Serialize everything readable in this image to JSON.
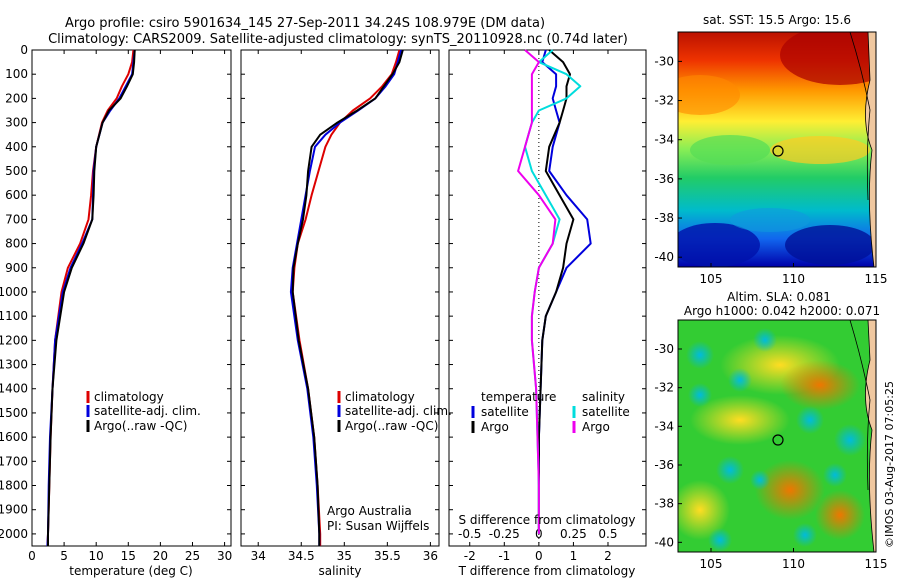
{
  "header": {
    "line1": "Argo profile: csiro 5901634_145 27-Sep-2011 34.24S 108.979E (DM data)",
    "line2": "Climatology: CARS2009. Satellite-adjusted climatology: synTS_20110928.nc (0.74d later)"
  },
  "colors": {
    "climatology": "#dd0000",
    "satellite": "#0000dd",
    "argo": "#000000",
    "sat_salinity": "#00dddd",
    "argo_salinity": "#ee00ee"
  },
  "legend_labels": {
    "climatology": "climatology",
    "satellite_adj": "satellite-adj. clim.",
    "argo": "Argo(..raw -QC)"
  },
  "diff_legend": {
    "temperature": "temperature",
    "salinity": "salinity",
    "satellite": "satellite",
    "argo": "Argo"
  },
  "credit": {
    "line1": "Argo Australia",
    "line2": "PI: Susan Wijffels"
  },
  "side_text": "©IMOS 03-Aug-2017 07:05:25",
  "maps": [
    {
      "title": "sat. SST: 15.5 Argo: 15.6",
      "xticks": [
        "105",
        "110",
        "115"
      ],
      "yticks": [
        "-30",
        "-32",
        "-34",
        "-36",
        "-38",
        "-40"
      ]
    },
    {
      "title": "Altim. SLA: 0.081",
      "title2": "Argo h1000: 0.042 h2000: 0.071",
      "xticks": [
        "105",
        "110",
        "115"
      ],
      "yticks": [
        "-30",
        "-32",
        "-34",
        "-36",
        "-38",
        "-40"
      ]
    }
  ],
  "chart_data": [
    {
      "type": "line",
      "xlabel": "temperature (deg C)",
      "xlim": [
        0,
        31
      ],
      "xticks": [
        "0",
        "5",
        "10",
        "15",
        "20",
        "25",
        "30"
      ],
      "ylim": [
        0,
        2050
      ],
      "yticks": [
        "0",
        "100",
        "200",
        "300",
        "400",
        "500",
        "600",
        "700",
        "800",
        "900",
        "1000",
        "1100",
        "1200",
        "1300",
        "1400",
        "1500",
        "1600",
        "1700",
        "1800",
        "1900",
        "2000"
      ],
      "depth": [
        0,
        50,
        100,
        150,
        200,
        250,
        300,
        400,
        500,
        600,
        700,
        800,
        900,
        1000,
        1200,
        1400,
        1600,
        1800,
        2000,
        2050
      ],
      "series": [
        {
          "name": "climatology",
          "values": [
            15.8,
            15.6,
            15.0,
            14.0,
            13.2,
            11.8,
            10.9,
            10.0,
            9.5,
            9.2,
            8.8,
            7.5,
            5.6,
            4.6,
            3.6,
            3.2,
            2.9,
            2.7,
            2.5,
            2.4
          ]
        },
        {
          "name": "satellite-adj. clim.",
          "values": [
            16.0,
            15.8,
            15.6,
            14.6,
            13.6,
            12.2,
            11.0,
            10.0,
            9.6,
            9.5,
            9.4,
            7.8,
            6.0,
            4.8,
            3.6,
            3.2,
            2.8,
            2.6,
            2.5,
            2.4
          ]
        },
        {
          "name": "Argo(..raw -QC)",
          "values": [
            16.0,
            15.9,
            15.7,
            14.8,
            13.8,
            12.0,
            11.0,
            10.0,
            9.7,
            9.6,
            9.4,
            8.0,
            6.2,
            5.0,
            3.8,
            3.2,
            2.9,
            2.7,
            2.5,
            2.5
          ]
        }
      ]
    },
    {
      "type": "line",
      "xlabel": "salinity",
      "xlim": [
        33.8,
        36.1
      ],
      "xticks": [
        "34",
        "34.5",
        "35",
        "35.5",
        "36"
      ],
      "ylim": [
        0,
        2050
      ],
      "depth": [
        0,
        50,
        100,
        150,
        200,
        250,
        300,
        350,
        400,
        500,
        600,
        700,
        800,
        900,
        1000,
        1200,
        1400,
        1600,
        1800,
        2000,
        2050
      ],
      "series": [
        {
          "name": "climatology",
          "values": [
            35.64,
            35.6,
            35.55,
            35.44,
            35.3,
            35.1,
            34.95,
            34.85,
            34.78,
            34.7,
            34.62,
            34.55,
            34.46,
            34.42,
            34.4,
            34.48,
            34.58,
            34.65,
            34.69,
            34.72,
            34.72
          ]
        },
        {
          "name": "satellite-adj. clim.",
          "values": [
            35.66,
            35.62,
            35.58,
            35.48,
            35.36,
            35.16,
            34.95,
            34.78,
            34.66,
            34.6,
            34.55,
            34.5,
            34.45,
            34.4,
            34.38,
            34.46,
            34.57,
            34.64,
            34.68,
            34.71,
            34.71
          ]
        },
        {
          "name": "Argo(..raw -QC)",
          "values": [
            35.68,
            35.64,
            35.56,
            35.46,
            35.36,
            35.15,
            34.92,
            34.72,
            34.62,
            34.58,
            34.56,
            34.52,
            34.46,
            34.41,
            34.4,
            34.47,
            34.58,
            34.65,
            34.69,
            34.71,
            34.71
          ]
        }
      ]
    },
    {
      "type": "line",
      "xlabel": "T difference from climatology",
      "x2label": "S difference from climatology",
      "xlim": [
        -2.6,
        3.1
      ],
      "xticks": [
        "-2",
        "-1",
        "0",
        "1",
        "2"
      ],
      "x2ticks": [
        "-0.5",
        "-0.25",
        "0",
        "0.25",
        "0.5"
      ],
      "ylim": [
        0,
        2050
      ],
      "depth": [
        0,
        50,
        100,
        150,
        200,
        250,
        300,
        400,
        500,
        600,
        700,
        800,
        900,
        1000,
        1100,
        1200,
        1400,
        1600,
        1800,
        2000
      ],
      "series": [
        {
          "name": "satellite",
          "values": [
            0.2,
            0.1,
            0.5,
            0.5,
            0.4,
            0.5,
            0.6,
            0.4,
            0.3,
            0.8,
            1.4,
            1.5,
            0.8,
            0.5,
            0.2,
            0.1,
            0.05,
            0.0,
            0.0,
            0.0
          ]
        },
        {
          "name": "Argo",
          "values": [
            0.3,
            0.7,
            0.9,
            0.8,
            0.8,
            0.7,
            0.6,
            0.3,
            0.2,
            0.6,
            1.0,
            0.8,
            0.7,
            0.5,
            0.2,
            0.1,
            0.05,
            0.0,
            0.0,
            0.0
          ]
        },
        {
          "name": "satellite (salinity)",
          "values": [
            0.1,
            0.0,
            0.2,
            0.3,
            0.2,
            0.0,
            -0.05,
            -0.1,
            -0.05,
            0.05,
            0.15,
            0.1,
            0.0,
            -0.03,
            -0.05,
            -0.05,
            -0.02,
            -0.01,
            0.0,
            0.0
          ]
        },
        {
          "name": "Argo (salinity)",
          "values": [
            -0.1,
            0.0,
            -0.05,
            -0.05,
            -0.05,
            -0.05,
            -0.05,
            -0.1,
            -0.15,
            0.0,
            0.12,
            0.1,
            0.0,
            -0.03,
            -0.05,
            -0.05,
            -0.02,
            -0.01,
            0.0,
            0.0
          ]
        }
      ]
    }
  ]
}
